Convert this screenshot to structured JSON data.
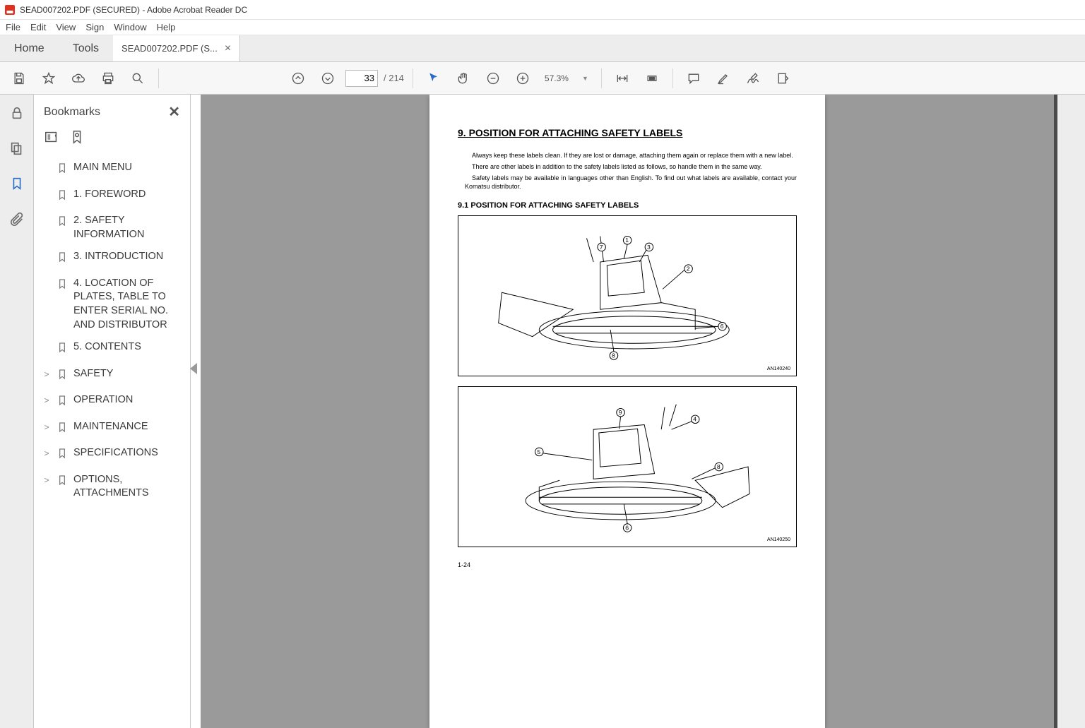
{
  "titlebar": {
    "text": "SEAD007202.PDF (SECURED) - Adobe Acrobat Reader DC"
  },
  "menu": {
    "items": [
      "File",
      "Edit",
      "View",
      "Sign",
      "Window",
      "Help"
    ]
  },
  "tabs": {
    "home": "Home",
    "tools": "Tools",
    "doc": "SEAD007202.PDF (S..."
  },
  "toolbar": {
    "page_current": "33",
    "page_total": "/ 214",
    "zoom": "57.3%"
  },
  "bookmarks": {
    "title": "Bookmarks",
    "items": [
      {
        "label": "MAIN MENU",
        "expandable": false
      },
      {
        "label": "1. FOREWORD",
        "expandable": false
      },
      {
        "label": "2. SAFETY INFORMATION",
        "expandable": false
      },
      {
        "label": "3. INTRODUCTION",
        "expandable": false
      },
      {
        "label": "4. LOCATION OF PLATES, TABLE TO ENTER SERIAL NO. AND DISTRIBUTOR",
        "expandable": false
      },
      {
        "label": "5. CONTENTS",
        "expandable": false
      },
      {
        "label": "SAFETY",
        "expandable": true
      },
      {
        "label": "OPERATION",
        "expandable": true
      },
      {
        "label": "MAINTENANCE",
        "expandable": true
      },
      {
        "label": "SPECIFICATIONS",
        "expandable": true
      },
      {
        "label": "OPTIONS, ATTACHMENTS",
        "expandable": true
      }
    ]
  },
  "document": {
    "heading": "9. POSITION FOR ATTACHING SAFETY LABELS",
    "para1": "Always keep these labels clean. If they are lost or damage, attaching them again or replace them with a new label.",
    "para2": "There are other labels in addition to the safety labels listed as follows, so handle them in the same way.",
    "para3": "Safety labels may be available in languages other than English. To find out what labels are available, contact your Komatsu distributor.",
    "subheading": "9.1  POSITION FOR ATTACHING SAFETY LABELS",
    "fig1_code": "AN140240",
    "fig2_code": "AN140250",
    "pagenum": "1-24"
  }
}
